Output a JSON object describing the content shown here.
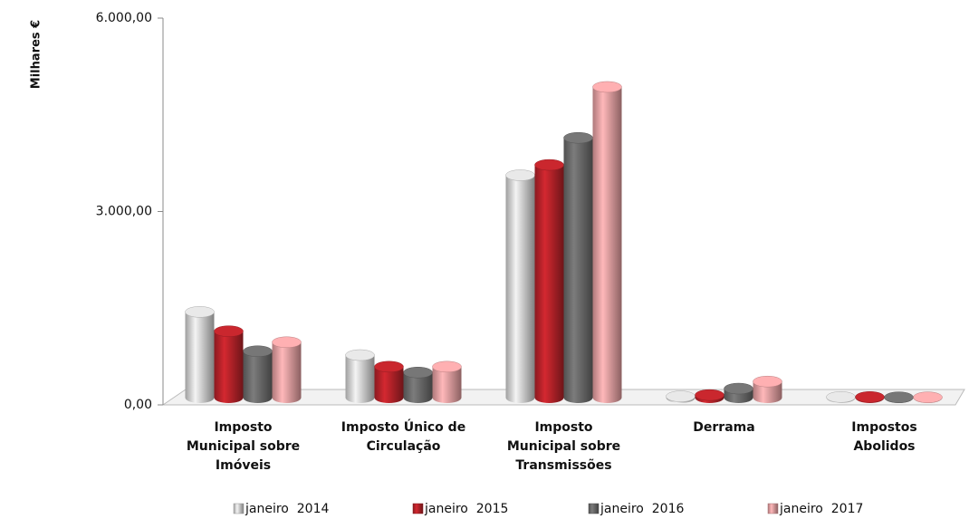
{
  "chart_data": {
    "type": "bar3d",
    "ylabel": "Milhares €",
    "categories": [
      "Imposto\nMunicipal sobre\nImóveis",
      "Imposto Único de\nCirculação",
      "Imposto\nMunicipal sobre\nTransmissões",
      "Derrama",
      "Impostos\nAbolidos"
    ],
    "series": [
      {
        "name": "janeiro  2014",
        "color": "#d4d4d4",
        "values": [
          1330,
          660,
          3450,
          20,
          10
        ]
      },
      {
        "name": "janeiro  2015",
        "color": "#b8232a",
        "values": [
          1030,
          480,
          3610,
          40,
          10
        ]
      },
      {
        "name": "janeiro  2016",
        "color": "#6c6c6c",
        "values": [
          720,
          390,
          4030,
          140,
          5
        ]
      },
      {
        "name": "janeiro  2017",
        "color": "#e8a0a2",
        "values": [
          860,
          480,
          4820,
          250,
          5
        ]
      }
    ],
    "ylim": [
      0,
      6000
    ],
    "yticks": [
      {
        "value": 0,
        "label": "0,00"
      },
      {
        "value": 3000,
        "label": "3.000,00"
      },
      {
        "value": 6000,
        "label": "6.000,00"
      }
    ],
    "legend": "bottom"
  }
}
